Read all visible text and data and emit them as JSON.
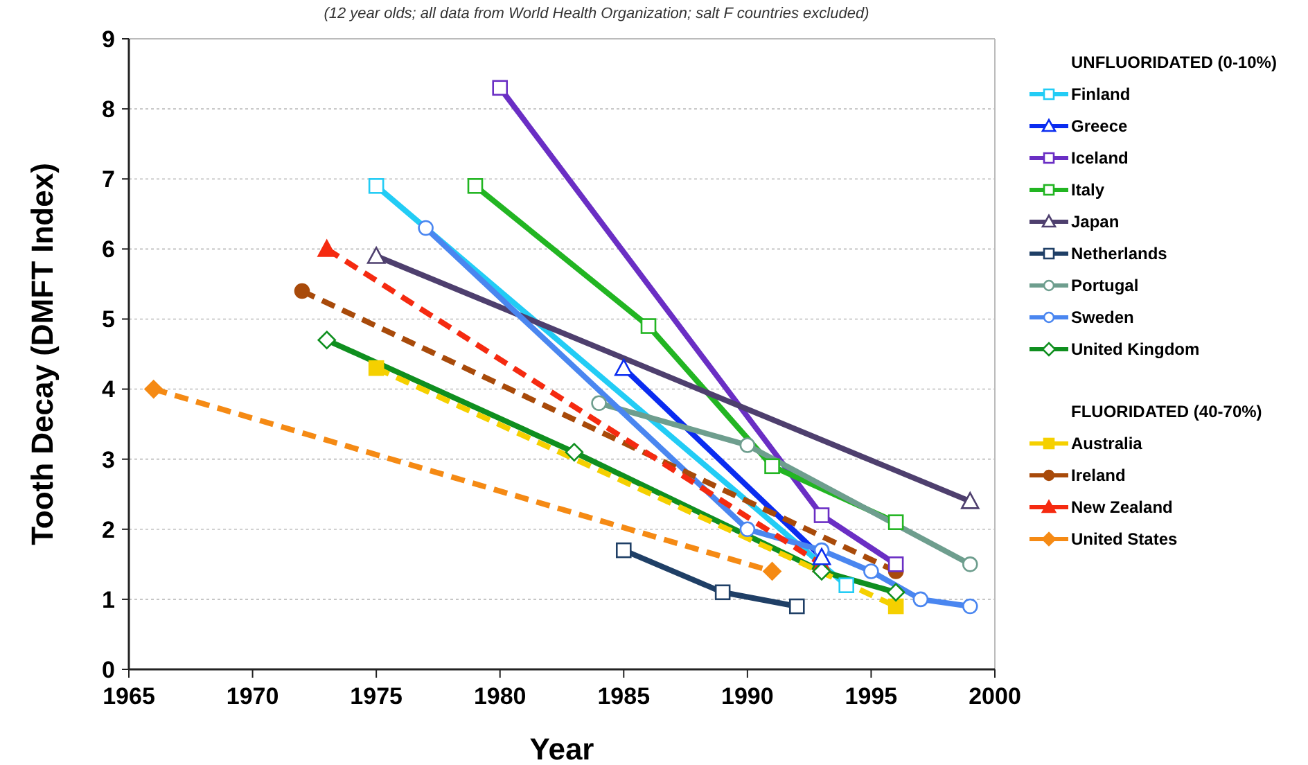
{
  "chart_data": {
    "type": "line",
    "subtitle": "(12 year olds; all data from World Health Organization; salt F countries excluded)",
    "xlabel": "Year",
    "ylabel": "Tooth Decay (DMFT Index)",
    "legend_title": "UNFLUORIDATED (0-10%)",
    "annotations": [
      "FLUORIDATED (40-70%)"
    ],
    "xlim": [
      1965,
      2000
    ],
    "xticks": [
      1965,
      1970,
      1975,
      1980,
      1985,
      1990,
      1995,
      2000
    ],
    "ylim": [
      0,
      9
    ],
    "yticks": [
      0,
      1,
      2,
      3,
      4,
      5,
      6,
      7,
      8,
      9
    ],
    "grid": "y",
    "legend": "right",
    "series": [
      {
        "name": "Finland",
        "color": "#22ccf5",
        "marker": "square",
        "line_style": "solid",
        "x": [
          1975,
          1994
        ],
        "values": [
          6.9,
          1.2
        ]
      },
      {
        "name": "Greece",
        "color": "#0a2cf0",
        "marker": "triangle",
        "line_style": "solid",
        "x": [
          1985,
          1993
        ],
        "values": [
          4.3,
          1.6
        ]
      },
      {
        "name": "Iceland",
        "color": "#6a2ec4",
        "marker": "square",
        "line_style": "solid",
        "x": [
          1980,
          1993,
          1996
        ],
        "values": [
          8.3,
          2.2,
          1.5
        ]
      },
      {
        "name": "Italy",
        "color": "#22b522",
        "marker": "square",
        "line_style": "solid",
        "x": [
          1979,
          1986,
          1991,
          1996
        ],
        "values": [
          6.9,
          4.9,
          2.9,
          2.1
        ]
      },
      {
        "name": "Japan",
        "color": "#4e3f6e",
        "marker": "triangle",
        "line_style": "solid",
        "x": [
          1975,
          1999
        ],
        "values": [
          5.9,
          2.4
        ]
      },
      {
        "name": "Netherlands",
        "color": "#1f3f66",
        "marker": "square",
        "line_style": "solid",
        "x": [
          1985,
          1989,
          1992
        ],
        "values": [
          1.7,
          1.1,
          0.9
        ]
      },
      {
        "name": "Portugal",
        "color": "#6e9e8e",
        "marker": "circle",
        "line_style": "solid",
        "x": [
          1984,
          1990,
          1999
        ],
        "values": [
          3.8,
          3.2,
          1.5
        ]
      },
      {
        "name": "Sweden",
        "color": "#4a86f0",
        "marker": "circle",
        "line_style": "solid",
        "x": [
          1977,
          1990,
          1993,
          1995,
          1997,
          1999
        ],
        "values": [
          6.3,
          2.0,
          1.7,
          1.4,
          1.0,
          0.9
        ]
      },
      {
        "name": "United Kingdom",
        "color": "#0f8f1f",
        "marker": "diamond",
        "line_style": "solid",
        "x": [
          1973,
          1983,
          1993,
          1996
        ],
        "values": [
          4.7,
          3.1,
          1.4,
          1.1
        ]
      },
      {
        "name": "Australia",
        "color": "#f5d000",
        "marker": "square",
        "line_style": "dashed",
        "x": [
          1975,
          1996
        ],
        "values": [
          4.3,
          0.9
        ]
      },
      {
        "name": "Ireland",
        "color": "#a84a0a",
        "marker": "circle",
        "line_style": "dashed",
        "x": [
          1972,
          1996
        ],
        "values": [
          5.4,
          1.4
        ]
      },
      {
        "name": "New Zealand",
        "color": "#f52a10",
        "marker": "triangle",
        "line_style": "dashed",
        "x": [
          1973,
          1993
        ],
        "values": [
          6.0,
          1.5
        ]
      },
      {
        "name": "United States",
        "color": "#f58a14",
        "marker": "diamond",
        "line_style": "dashed",
        "x": [
          1966,
          1991
        ],
        "values": [
          4.0,
          1.4
        ]
      }
    ]
  }
}
